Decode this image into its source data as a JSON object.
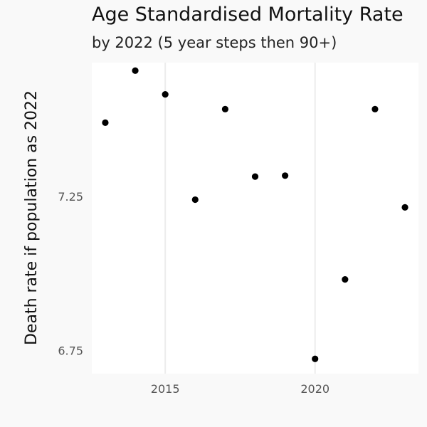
{
  "chart_data": {
    "type": "scatter",
    "title": "Age Standardised Mortality Rate",
    "subtitle": "by 2022 (5 year steps then 90+)",
    "xlabel": "",
    "ylabel": "Death rate if population as 2022",
    "xlim": [
      2012.55,
      2023.45
    ],
    "ylim": [
      6.675,
      7.685
    ],
    "x_ticks": [
      2015,
      2020
    ],
    "y_ticks": [
      7.25,
      6.75
    ],
    "y_tick_labels": [
      "7.25",
      "6.75"
    ],
    "grid": "vertical major lines",
    "point_color": "#000000",
    "points": [
      {
        "x": 2013,
        "y": 7.49
      },
      {
        "x": 2014,
        "y": 7.659
      },
      {
        "x": 2015,
        "y": 7.582
      },
      {
        "x": 2016,
        "y": 7.24
      },
      {
        "x": 2017,
        "y": 7.534
      },
      {
        "x": 2018,
        "y": 7.315
      },
      {
        "x": 2019,
        "y": 7.318
      },
      {
        "x": 2020,
        "y": 6.723
      },
      {
        "x": 2021,
        "y": 6.981
      },
      {
        "x": 2022,
        "y": 7.534
      },
      {
        "x": 2023,
        "y": 7.215
      }
    ]
  }
}
